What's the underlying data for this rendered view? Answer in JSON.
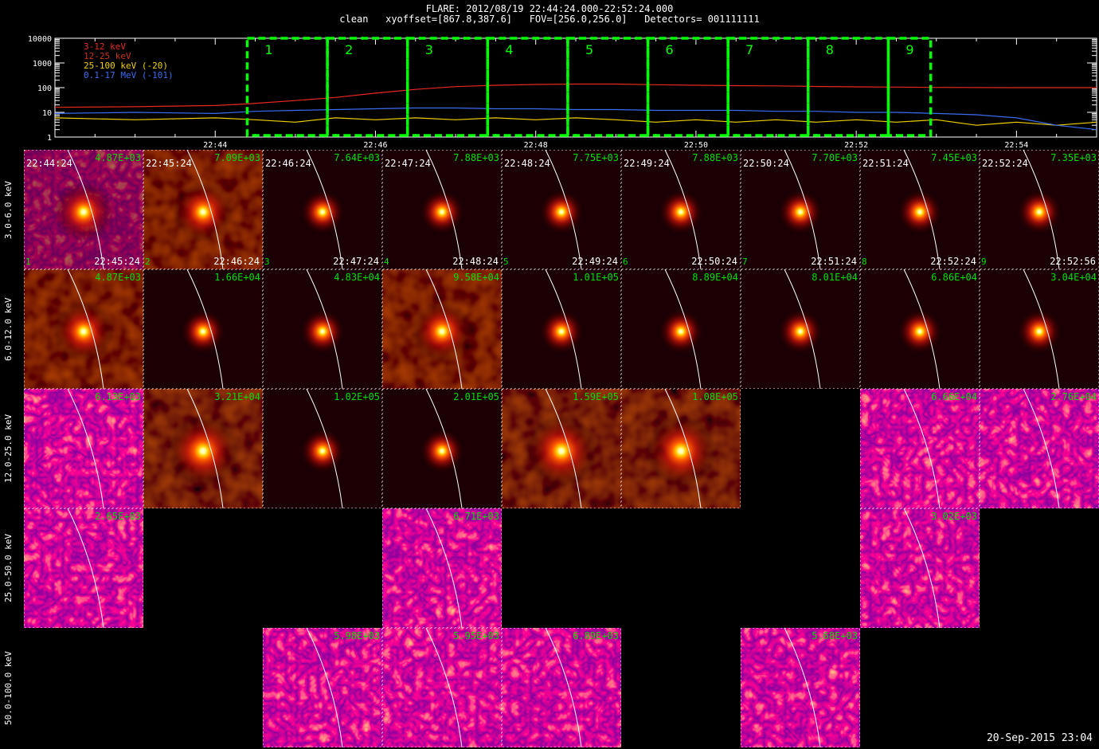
{
  "header": {
    "line1": "FLARE: 2012/08/19 22:44:24.000-22:52:24.000",
    "line2": "clean   xyoffset=[867.8,387.6]   FOV=[256.0,256.0]   Detectors= 001111111"
  },
  "footer": {
    "date": "20-Sep-2015 23:04"
  },
  "colors": {
    "band_3_12": "#e8281c",
    "band_12_25": "#c8321c",
    "band_25_100": "#f0d000",
    "band_100_17000": "#3a6cf0",
    "interval_box": "#00ff00",
    "label_green": "#00e000"
  },
  "chart_data": [
    {
      "type": "line",
      "title": "",
      "ylog": true,
      "ylim": [
        1,
        10000
      ],
      "yticks": [
        "1",
        "10",
        "100",
        "1000",
        "10000"
      ],
      "xticks": [
        "22:44",
        "22:46",
        "22:48",
        "22:50",
        "22:52",
        "22:54"
      ],
      "xlim_minutes": [
        42.0,
        55.0
      ],
      "series": [
        {
          "name": "3-12 keV",
          "color_key": "band_3_12",
          "x": [
            42.0,
            43.0,
            44.0,
            44.4,
            45.0,
            45.5,
            46.0,
            46.5,
            47.0,
            47.5,
            48.0,
            48.5,
            49.0,
            49.5,
            50.0,
            50.5,
            51.0,
            51.5,
            52.0,
            52.5,
            53.0,
            54.0,
            55.0
          ],
          "y": [
            16,
            17,
            19,
            22,
            30,
            40,
            60,
            85,
            110,
            125,
            135,
            140,
            140,
            132,
            125,
            120,
            118,
            112,
            108,
            105,
            102,
            100,
            100
          ]
        },
        {
          "name": "12-25 keV",
          "color_key": "band_12_25",
          "x": [],
          "y": []
        },
        {
          "name": "25-100 keV (-20)",
          "color_key": "band_25_100",
          "x": [
            42.0,
            43.0,
            44.0,
            44.5,
            45.0,
            45.5,
            46.0,
            46.5,
            47.0,
            47.5,
            48.0,
            48.5,
            49.0,
            49.5,
            50.0,
            50.5,
            51.0,
            51.5,
            52.0,
            52.5,
            53.0,
            53.5,
            54.0,
            54.5,
            55.0
          ],
          "y": [
            6,
            5,
            6,
            5,
            4,
            6,
            5,
            6,
            5,
            6,
            5,
            6,
            5,
            4,
            5,
            4,
            5,
            4,
            5,
            4,
            5,
            3,
            4,
            3,
            4
          ]
        },
        {
          "name": "0.1-17 MeV (-101)",
          "color_key": "band_100_17000",
          "x": [
            42.0,
            43.0,
            44.0,
            44.5,
            45.0,
            45.5,
            46.0,
            46.5,
            47.0,
            47.5,
            48.0,
            48.5,
            49.0,
            49.5,
            50.0,
            50.5,
            51.0,
            51.5,
            52.0,
            52.5,
            53.0,
            53.5,
            54.0,
            54.5,
            55.0
          ],
          "y": [
            9,
            10,
            9,
            11,
            12,
            13,
            14,
            15,
            15,
            14,
            14,
            13,
            13,
            12,
            12,
            12,
            11,
            11,
            10,
            10,
            9,
            8,
            6,
            3,
            2
          ]
        }
      ],
      "intervals": [
        {
          "label": "1",
          "start": 44.4,
          "end": 45.4
        },
        {
          "label": "2",
          "start": 45.4,
          "end": 46.4
        },
        {
          "label": "3",
          "start": 46.4,
          "end": 47.4
        },
        {
          "label": "4",
          "start": 47.4,
          "end": 48.4
        },
        {
          "label": "5",
          "start": 48.4,
          "end": 49.4
        },
        {
          "label": "6",
          "start": 49.4,
          "end": 50.4
        },
        {
          "label": "7",
          "start": 50.4,
          "end": 51.4
        },
        {
          "label": "8",
          "start": 51.4,
          "end": 52.4
        },
        {
          "label": "9",
          "start": 52.4,
          "end": 52.93
        }
      ]
    },
    {
      "type": "heatmap",
      "title": "",
      "row_labels": [
        "3.0-6.0 keV",
        "6.0-12.0 keV",
        "12.0-25.0 keV",
        "25.0-50.0 keV",
        "50.0-100.0 keV"
      ],
      "interval_numbers": [
        "1",
        "2",
        "3",
        "4",
        "5",
        "6",
        "7",
        "8",
        "9"
      ],
      "start_times": [
        "22:44:24",
        "22:45:24",
        "22:46:24",
        "22:47:24",
        "22:48:24",
        "22:49:24",
        "22:50:24",
        "22:51:24",
        "22:52:24"
      ],
      "end_times": [
        "22:45:24",
        "22:46:24",
        "22:47:24",
        "22:48:24",
        "22:49:24",
        "22:50:24",
        "22:51:24",
        "22:52:24",
        "22:52:56"
      ],
      "image_max": [
        [
          "4.87E+03",
          "7.09E+03",
          "7.64E+03",
          "7.88E+03",
          "7.75E+03",
          "7.88E+03",
          "7.70E+03",
          "7.45E+03",
          "7.35E+03"
        ],
        [
          "4.87E+03",
          "1.66E+04",
          "4.83E+04",
          "9.58E+04",
          "1.01E+05",
          "8.89E+04",
          "8.01E+04",
          "6.86E+04",
          "3.04E+04"
        ],
        [
          "6.13E+03",
          "3.21E+04",
          "1.02E+05",
          "2.01E+05",
          "1.59E+05",
          "1.08E+05",
          null,
          "6.66E+04",
          "2.76E+04"
        ],
        [
          "2.65E+03",
          null,
          null,
          "6.71E+03",
          null,
          null,
          null,
          "3.02E+03",
          null
        ],
        [
          null,
          null,
          "5.98E+03",
          "5.95E+03",
          "6.89E+03",
          null,
          "5.68E+03",
          null,
          null
        ]
      ],
      "quality": [
        [
          "noisy",
          "ring",
          "clean",
          "clean",
          "clean",
          "clean",
          "clean",
          "clean",
          "clean"
        ],
        [
          "ring",
          "clean",
          "clean",
          "ring",
          "clean",
          "clean",
          "clean",
          "clean",
          "clean"
        ],
        [
          "noise",
          "mid",
          "clean",
          "clean",
          "mid",
          "mid",
          null,
          "noise",
          "noise"
        ],
        [
          "noise",
          null,
          null,
          "noise",
          null,
          null,
          null,
          "noise",
          null
        ],
        [
          null,
          null,
          "noise",
          "noise",
          "noise",
          null,
          "noise",
          null,
          null
        ]
      ]
    }
  ]
}
